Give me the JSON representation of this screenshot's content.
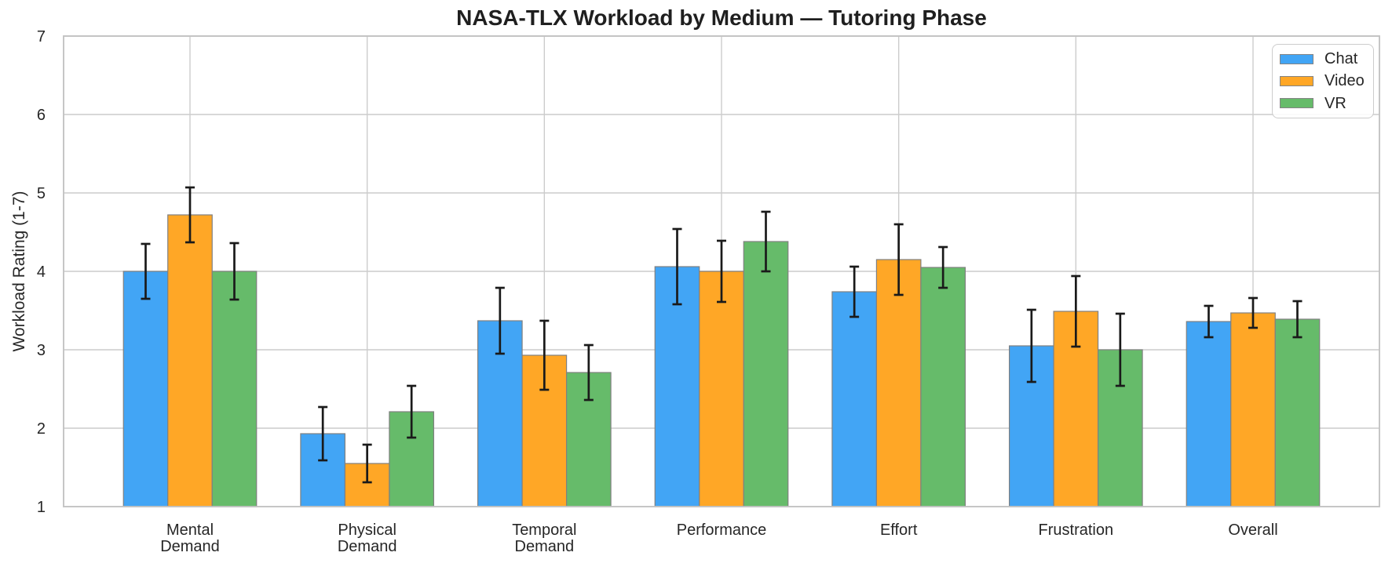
{
  "figure": {
    "title": "NASA-TLX Workload by Medium — Tutoring Phase"
  },
  "chart_data": {
    "type": "bar",
    "title": "NASA-TLX Workload by Medium — Tutoring Phase",
    "xlabel": "",
    "ylabel": "Workload Rating (1-7)",
    "ylim": [
      1,
      7
    ],
    "yticks": [
      1,
      2,
      3,
      4,
      5,
      6,
      7
    ],
    "grid": true,
    "legend_position": "upper right",
    "error_bars": true,
    "categories": [
      "Mental\nDemand",
      "Physical\nDemand",
      "Temporal\nDemand",
      "Performance",
      "Effort",
      "Frustration",
      "Overall"
    ],
    "series": [
      {
        "name": "Chat",
        "color": "#42A5F5",
        "values": [
          4.0,
          1.93,
          3.37,
          4.06,
          3.74,
          3.05,
          3.36
        ],
        "errors": [
          0.35,
          0.34,
          0.42,
          0.48,
          0.32,
          0.46,
          0.2
        ]
      },
      {
        "name": "Video",
        "color": "#FFA726",
        "values": [
          4.72,
          1.55,
          2.93,
          4.0,
          4.15,
          3.49,
          3.47
        ],
        "errors": [
          0.35,
          0.24,
          0.44,
          0.39,
          0.45,
          0.45,
          0.19
        ]
      },
      {
        "name": "VR",
        "color": "#66BB6A",
        "values": [
          4.0,
          2.21,
          2.71,
          4.38,
          4.05,
          3.0,
          3.39
        ],
        "errors": [
          0.36,
          0.33,
          0.35,
          0.38,
          0.26,
          0.46,
          0.23
        ]
      }
    ],
    "style": {
      "grid_color": "#cccccc",
      "spine_color": "#c3c3c3",
      "bar_edge_color": "#808080",
      "error_bar_color": "#1a1a1a",
      "text_color": "#262626",
      "background_color": "#ffffff"
    }
  }
}
